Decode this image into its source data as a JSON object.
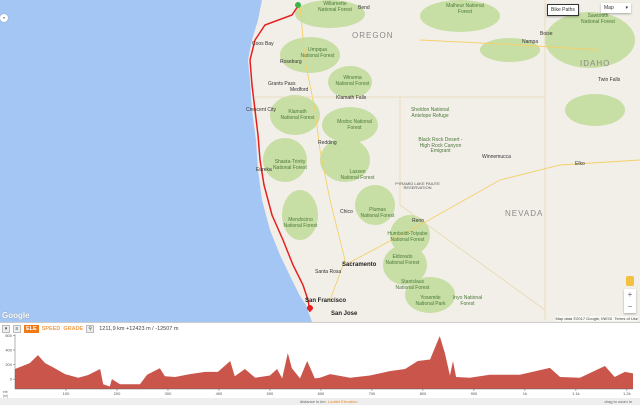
{
  "map": {
    "controls": {
      "bike_paths": "Bike Paths",
      "map_type": "Map",
      "zoom_in": "+",
      "zoom_out": "−",
      "collapse": "«"
    },
    "logo": "Google",
    "attribution": "Map data ©2017 Google, INEGI",
    "terms": "Terms of Use",
    "labels": {
      "oregon": "OREGON",
      "idaho": "IDAHO",
      "nevada": "NEVADA",
      "willamette": "Willamette National Forest",
      "malheur": "Malheur National Forest",
      "umpqua": "Umpqua National Forest",
      "winema": "Winema National Forest",
      "klamath": "Klamath National Forest",
      "modoc": "Modoc National Forest",
      "shasta": "Shasta-Trinity National Forest",
      "lassen": "Lassen National Forest",
      "plumas": "Plumas National Forest",
      "mendocino": "Mendocino National Forest",
      "tahoe": "Humboldt-Toiyabe National Forest",
      "eldorado": "Eldorado National Forest",
      "stanislaus": "Stanislaus National Forest",
      "yosemite": "Yosemite National Park",
      "inyo": "Inyo National Forest",
      "sawtooth": "Sawtooth National Forest",
      "sheldon": "Sheldon National Antelope Refuge",
      "blackrock": "Black Rock Desert - High Rock Canyon Emigrant",
      "pyramid": "PYRAMID LAKE PAIUTE RESERVATION",
      "bend": "Bend",
      "medford": "Medford",
      "redding": "Redding",
      "eureka": "Eureka",
      "chico": "Chico",
      "reno": "Reno",
      "sacramento": "Sacramento",
      "santarosa": "Santa Rosa",
      "sf": "San Francisco",
      "sanjose": "San Jose",
      "boise": "Boise",
      "nampa": "Nampa",
      "twinfalls": "Twin Falls",
      "elko": "Elko",
      "winnemucca": "Winnemucca",
      "klamathfalls": "Klamath Falls",
      "coosbay": "Coos Bay",
      "roseburg": "Roseburg",
      "grantspass": "Grants Pass",
      "crescentcity": "Crescent City"
    }
  },
  "profile": {
    "toolbar": {
      "collapse": "▾",
      "list": "≡",
      "elevation": "ELE",
      "speed": "SPEED",
      "grade": "GRADE",
      "zoom": "⚲"
    },
    "stats": "1211,9 km +12423 m / -12507 m",
    "y_unit": "ele (m)",
    "x_label": "distance in km",
    "x_label_link": "Leaflet.Elevation",
    "hint": "drag to zoom in",
    "fill_color": "#c9554b"
  },
  "chart_data": {
    "type": "area",
    "xlabel": "distance in km",
    "ylabel": "ele (m)",
    "ylim": [
      -135,
      620
    ],
    "xlim": [
      0,
      1212
    ],
    "yticks": [
      0,
      200,
      400,
      600
    ],
    "xticks": [
      {
        "v": 100,
        "label": "100"
      },
      {
        "v": 200,
        "label": "200"
      },
      {
        "v": 300,
        "label": "300"
      },
      {
        "v": 400,
        "label": "400"
      },
      {
        "v": 500,
        "label": "500"
      },
      {
        "v": 600,
        "label": "600"
      },
      {
        "v": 700,
        "label": "700"
      },
      {
        "v": 800,
        "label": "800"
      },
      {
        "v": 900,
        "label": "900"
      },
      {
        "v": 1000,
        "label": "1k"
      },
      {
        "v": 1100,
        "label": "1.1k"
      },
      {
        "v": 1200,
        "label": "1.2k"
      }
    ],
    "x": [
      0,
      29,
      45,
      59,
      78,
      98,
      124,
      143,
      167,
      173,
      186,
      190,
      206,
      245,
      259,
      284,
      294,
      314,
      343,
      373,
      398,
      422,
      431,
      451,
      471,
      500,
      514,
      524,
      535,
      543,
      559,
      573,
      588,
      598,
      618,
      657,
      696,
      735,
      765,
      790,
      814,
      833,
      843,
      853,
      859,
      865,
      892,
      931,
      990,
      1049,
      1069,
      1108,
      1157,
      1176,
      1196,
      1212
    ],
    "y": [
      140,
      220,
      330,
      220,
      150,
      70,
      20,
      55,
      140,
      -70,
      -100,
      0,
      -70,
      -70,
      60,
      150,
      40,
      30,
      70,
      100,
      100,
      250,
      40,
      140,
      20,
      50,
      140,
      10,
      360,
      150,
      10,
      250,
      10,
      20,
      70,
      20,
      50,
      110,
      140,
      250,
      270,
      590,
      360,
      50,
      250,
      30,
      20,
      60,
      60,
      155,
      30,
      20,
      180,
      30,
      100,
      80
    ]
  }
}
